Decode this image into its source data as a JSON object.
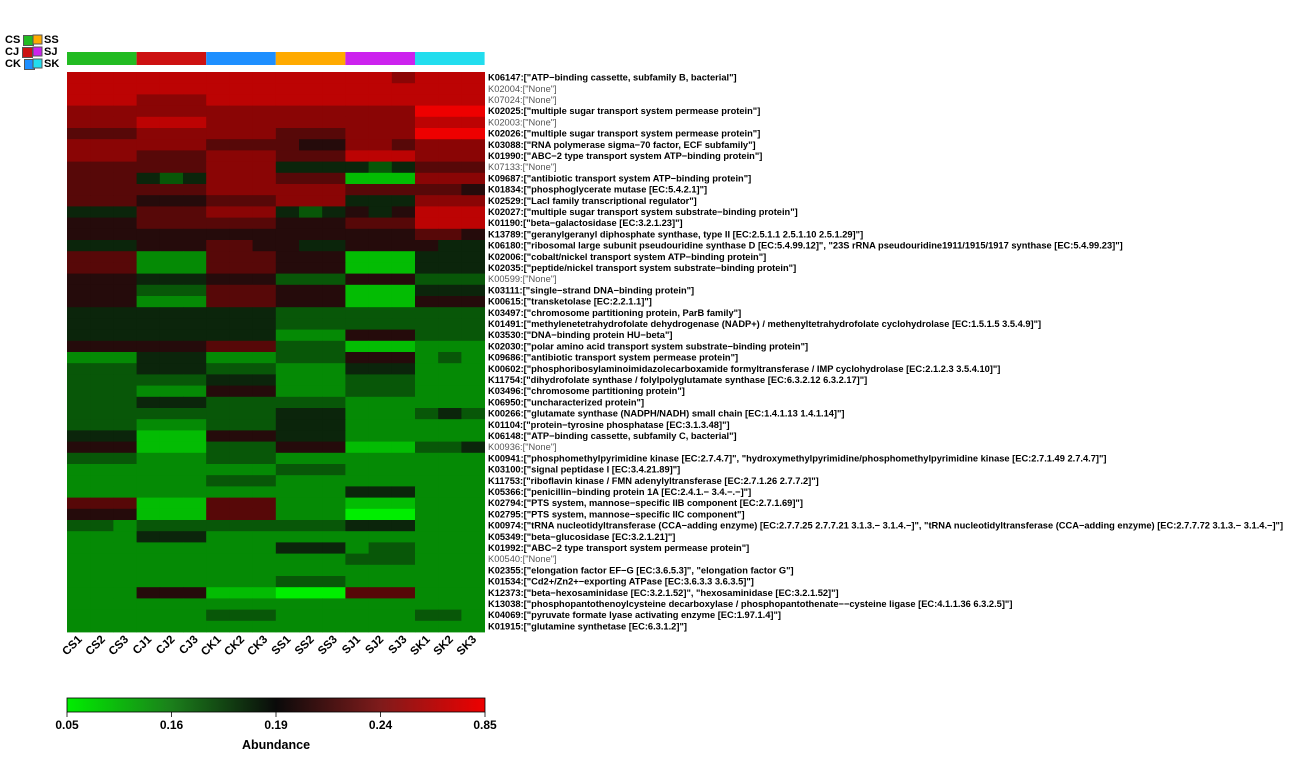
{
  "chart_data": {
    "type": "heatmap",
    "group_legend": [
      {
        "name": "CS",
        "color": "#22BB22"
      },
      {
        "name": "SS",
        "color": "#FFAA00"
      },
      {
        "name": "CJ",
        "color": "#CC1111"
      },
      {
        "name": "SJ",
        "color": "#CC22EE"
      },
      {
        "name": "CK",
        "color": "#1E8FFF"
      },
      {
        "name": "SK",
        "color": "#22DDEE"
      }
    ],
    "groups": [
      "CS",
      "CJ",
      "CK",
      "SS",
      "SJ",
      "SK"
    ],
    "columns": [
      "CS1",
      "CS2",
      "CS3",
      "CJ1",
      "CJ2",
      "CJ3",
      "CK1",
      "CK2",
      "CK3",
      "SS1",
      "SS2",
      "SS3",
      "SJ1",
      "SJ2",
      "SJ3",
      "SK1",
      "SK2",
      "SK3"
    ],
    "rows": [
      {
        "id": "K06147",
        "label": "[\"ATP−binding cassette, subfamily B, bacterial\"]"
      },
      {
        "id": "K02004",
        "label": "[\"None\"]"
      },
      {
        "id": "K07024",
        "label": "[\"None\"]"
      },
      {
        "id": "K02025",
        "label": "[\"multiple sugar transport system permease protein\"]"
      },
      {
        "id": "K02003",
        "label": "[\"None\"]"
      },
      {
        "id": "K02026",
        "label": "[\"multiple sugar transport system permease protein\"]"
      },
      {
        "id": "K03088",
        "label": "[\"RNA polymerase sigma−70 factor, ECF subfamily\"]"
      },
      {
        "id": "K01990",
        "label": "[\"ABC−2 type transport system ATP−binding protein\"]"
      },
      {
        "id": "K07133",
        "label": "[\"None\"]"
      },
      {
        "id": "K09687",
        "label": "[\"antibiotic transport system ATP−binding protein\"]"
      },
      {
        "id": "K01834",
        "label": "[\"phosphoglycerate mutase [EC:5.4.2.1]\"]"
      },
      {
        "id": "K02529",
        "label": "[\"LacI family transcriptional regulator\"]"
      },
      {
        "id": "K02027",
        "label": "[\"multiple sugar transport system substrate−binding protein\"]"
      },
      {
        "id": "K01190",
        "label": "[\"beta−galactosidase [EC:3.2.1.23]\"]"
      },
      {
        "id": "K13789",
        "label": "[\"geranylgeranyl diphosphate synthase, type II [EC:2.5.1.1 2.5.1.10 2.5.1.29]\"]"
      },
      {
        "id": "K06180",
        "label": "[\"ribosomal large subunit pseudouridine synthase D [EC:5.4.99.12]\", \"23S rRNA pseudouridine1911/1915/1917 synthase [EC:5.4.99.23]\"]"
      },
      {
        "id": "K02006",
        "label": "[\"cobalt/nickel transport system ATP−binding protein\"]"
      },
      {
        "id": "K02035",
        "label": "[\"peptide/nickel transport system substrate−binding protein\"]"
      },
      {
        "id": "K00599",
        "label": "[\"None\"]"
      },
      {
        "id": "K03111",
        "label": "[\"single−strand DNA−binding protein\"]"
      },
      {
        "id": "K00615",
        "label": "[\"transketolase [EC:2.2.1.1]\"]"
      },
      {
        "id": "K03497",
        "label": "[\"chromosome partitioning protein, ParB family\"]"
      },
      {
        "id": "K01491",
        "label": "[\"methylenetetrahydrofolate dehydrogenase (NADP+) / methenyltetrahydrofolate cyclohydrolase [EC:1.5.1.5 3.5.4.9]\"]"
      },
      {
        "id": "K03530",
        "label": "[\"DNA−binding protein HU−beta\"]"
      },
      {
        "id": "K02030",
        "label": "[\"polar amino acid transport system substrate−binding protein\"]"
      },
      {
        "id": "K09686",
        "label": "[\"antibiotic transport system permease protein\"]"
      },
      {
        "id": "K00602",
        "label": "[\"phosphoribosylaminoimidazolecarboxamide formyltransferase / IMP cyclohydrolase [EC:2.1.2.3 3.5.4.10]\"]"
      },
      {
        "id": "K11754",
        "label": "[\"dihydrofolate synthase / folylpolyglutamate synthase [EC:6.3.2.12 6.3.2.17]\"]"
      },
      {
        "id": "K03496",
        "label": "[\"chromosome partitioning protein\"]"
      },
      {
        "id": "K06950",
        "label": "[\"uncharacterized protein\"]"
      },
      {
        "id": "K00266",
        "label": "[\"glutamate synthase (NADPH/NADH) small chain [EC:1.4.1.13 1.4.1.14]\"]"
      },
      {
        "id": "K01104",
        "label": "[\"protein−tyrosine phosphatase [EC:3.1.3.48]\"]"
      },
      {
        "id": "K06148",
        "label": "[\"ATP−binding cassette, subfamily C, bacterial\"]"
      },
      {
        "id": "K00936",
        "label": "[\"None\"]"
      },
      {
        "id": "K00941",
        "label": "[\"phosphomethylpyrimidine kinase [EC:2.7.4.7]\", \"hydroxymethylpyrimidine/phosphomethylpyrimidine kinase [EC:2.7.1.49 2.7.4.7]\"]"
      },
      {
        "id": "K03100",
        "label": "[\"signal peptidase I [EC:3.4.21.89]\"]"
      },
      {
        "id": "K11753",
        "label": "[\"riboflavin kinase / FMN adenylyltransferase [EC:2.7.1.26 2.7.7.2]\"]"
      },
      {
        "id": "K05366",
        "label": "[\"penicillin−binding protein 1A [EC:2.4.1.− 3.4.−.−]\"]"
      },
      {
        "id": "K02794",
        "label": "[\"PTS system, mannose−specific IIB component [EC:2.7.1.69]\"]"
      },
      {
        "id": "K02795",
        "label": "[\"PTS system, mannose−specific IIC component\"]"
      },
      {
        "id": "K00974",
        "label": "[\"tRNA nucleotidyltransferase (CCA−adding enzyme) [EC:2.7.7.25 2.7.7.21 3.1.3.− 3.1.4.−]\", \"tRNA nucleotidyltransferase (CCA−adding enzyme) [EC:2.7.7.72 3.1.3.− 3.1.4.−]\"]"
      },
      {
        "id": "K05349",
        "label": "[\"beta−glucosidase [EC:3.2.1.21]\"]"
      },
      {
        "id": "K01992",
        "label": "[\"ABC−2 type transport system permease protein\"]"
      },
      {
        "id": "K00540",
        "label": "[\"None\"]"
      },
      {
        "id": "K02355",
        "label": "[\"elongation factor EF−G [EC:3.6.5.3]\", \"elongation factor G\"]"
      },
      {
        "id": "K01534",
        "label": "[\"Cd2+/Zn2+−exporting ATPase [EC:3.6.3.3 3.6.3.5]\"]"
      },
      {
        "id": "K12373",
        "label": "[\"beta−hexosaminidase [EC:3.2.1.52]\", \"hexosaminidase [EC:3.2.1.52]\"]"
      },
      {
        "id": "K13038",
        "label": "[\"phosphopantothenoylcysteine decarboxylase / phosphopantothenate−−cysteine ligase [EC:4.1.1.36 6.3.2.5]\"]"
      },
      {
        "id": "K04069",
        "label": "[\"pyruvate formate lyase activating enzyme [EC:1.97.1.4]\"]"
      },
      {
        "id": "K01915",
        "label": "[\"glutamine synthetase [EC:6.3.1.2]\"]"
      }
    ],
    "none_rows": [
      "K02004",
      "K07024",
      "K02003",
      "K07133",
      "K00599",
      "K00936",
      "K00540"
    ],
    "values": [
      [
        8,
        8,
        8,
        8,
        8,
        8,
        8,
        8,
        8,
        8,
        8,
        8,
        8,
        8,
        7,
        8,
        8,
        8
      ],
      [
        8,
        8,
        8,
        8,
        8,
        8,
        8,
        8,
        8,
        8,
        8,
        8,
        8,
        8,
        8,
        8,
        8,
        8
      ],
      [
        8,
        8,
        8,
        7,
        7,
        7,
        8,
        8,
        8,
        8,
        8,
        8,
        8,
        8,
        8,
        8,
        8,
        8
      ],
      [
        7,
        7,
        7,
        7,
        7,
        7,
        7,
        7,
        7,
        7,
        7,
        7,
        7,
        7,
        7,
        9,
        9,
        9
      ],
      [
        7,
        7,
        7,
        8,
        8,
        8,
        7,
        7,
        7,
        7,
        7,
        7,
        7,
        7,
        7,
        8,
        8,
        8
      ],
      [
        6,
        6,
        6,
        7,
        7,
        7,
        7,
        7,
        7,
        6,
        6,
        6,
        7,
        7,
        7,
        9,
        9,
        9
      ],
      [
        7,
        7,
        7,
        7,
        7,
        7,
        6,
        6,
        6,
        6,
        5,
        5,
        7,
        7,
        6,
        7,
        7,
        7
      ],
      [
        7,
        7,
        7,
        6,
        6,
        6,
        7,
        7,
        7,
        6,
        6,
        6,
        8,
        8,
        8,
        7,
        7,
        7
      ],
      [
        6,
        6,
        6,
        6,
        6,
        6,
        7,
        7,
        7,
        4,
        4,
        4,
        4,
        3,
        4,
        6,
        6,
        6
      ],
      [
        6,
        6,
        6,
        4,
        3,
        4,
        7,
        7,
        7,
        6,
        6,
        6,
        1,
        1,
        1,
        7,
        7,
        7
      ],
      [
        6,
        6,
        6,
        6,
        6,
        6,
        7,
        7,
        7,
        7,
        7,
        7,
        6,
        6,
        6,
        6,
        6,
        5
      ],
      [
        6,
        6,
        6,
        5,
        5,
        5,
        6,
        6,
        6,
        7,
        7,
        7,
        4,
        4,
        4,
        7,
        7,
        7
      ],
      [
        4,
        4,
        4,
        6,
        6,
        6,
        7,
        7,
        7,
        4,
        3,
        4,
        5,
        4,
        5,
        8,
        8,
        8
      ],
      [
        5,
        5,
        5,
        6,
        6,
        6,
        6,
        6,
        6,
        5,
        5,
        5,
        6,
        6,
        6,
        8,
        8,
        8
      ],
      [
        5,
        5,
        5,
        5,
        5,
        5,
        5,
        5,
        5,
        5,
        5,
        5,
        5,
        5,
        5,
        6,
        6,
        5
      ],
      [
        4,
        4,
        4,
        5,
        5,
        5,
        6,
        6,
        5,
        5,
        4,
        4,
        5,
        5,
        5,
        5,
        4,
        4
      ],
      [
        6,
        6,
        6,
        2,
        2,
        2,
        6,
        6,
        6,
        5,
        5,
        5,
        1,
        1,
        1,
        4,
        4,
        4
      ],
      [
        6,
        6,
        6,
        2,
        2,
        2,
        6,
        6,
        6,
        5,
        5,
        5,
        1,
        1,
        1,
        4,
        4,
        4
      ],
      [
        5,
        5,
        5,
        4,
        4,
        4,
        5,
        5,
        5,
        3,
        3,
        3,
        5,
        5,
        5,
        3,
        3,
        3
      ],
      [
        5,
        5,
        5,
        3,
        3,
        3,
        6,
        6,
        6,
        5,
        5,
        5,
        1,
        1,
        1,
        4,
        4,
        4
      ],
      [
        5,
        5,
        5,
        2,
        2,
        2,
        6,
        6,
        6,
        5,
        5,
        5,
        1,
        1,
        1,
        5,
        5,
        5
      ],
      [
        4,
        4,
        4,
        4,
        4,
        4,
        4,
        4,
        4,
        3,
        3,
        3,
        3,
        3,
        3,
        3,
        3,
        3
      ],
      [
        4,
        4,
        4,
        4,
        4,
        4,
        4,
        4,
        4,
        3,
        3,
        3,
        3,
        3,
        3,
        3,
        3,
        3
      ],
      [
        4,
        4,
        4,
        4,
        4,
        4,
        4,
        4,
        4,
        2,
        2,
        2,
        5,
        5,
        5,
        3,
        3,
        3
      ],
      [
        5,
        5,
        5,
        5,
        5,
        5,
        6,
        6,
        6,
        3,
        3,
        3,
        1,
        1,
        1,
        2,
        2,
        2
      ],
      [
        2,
        2,
        2,
        4,
        4,
        4,
        2,
        2,
        2,
        3,
        3,
        3,
        5,
        5,
        5,
        2,
        3,
        2
      ],
      [
        3,
        3,
        3,
        4,
        4,
        4,
        3,
        3,
        3,
        2,
        2,
        2,
        4,
        4,
        4,
        2,
        2,
        2
      ],
      [
        3,
        3,
        3,
        3,
        3,
        3,
        4,
        4,
        4,
        2,
        2,
        2,
        3,
        3,
        3,
        2,
        2,
        2
      ],
      [
        3,
        3,
        3,
        2,
        2,
        2,
        5,
        5,
        5,
        2,
        2,
        2,
        3,
        3,
        3,
        2,
        2,
        2
      ],
      [
        3,
        3,
        3,
        4,
        4,
        4,
        3,
        3,
        3,
        3,
        3,
        3,
        2,
        2,
        2,
        2,
        2,
        2
      ],
      [
        3,
        3,
        3,
        3,
        3,
        3,
        3,
        3,
        3,
        4,
        4,
        4,
        2,
        2,
        2,
        3,
        4,
        3
      ],
      [
        3,
        3,
        3,
        2,
        2,
        2,
        3,
        3,
        3,
        4,
        4,
        4,
        2,
        2,
        2,
        2,
        2,
        2
      ],
      [
        4,
        4,
        4,
        1,
        1,
        1,
        5,
        5,
        5,
        4,
        4,
        4,
        2,
        2,
        2,
        2,
        2,
        2
      ],
      [
        5,
        5,
        5,
        1,
        1,
        1,
        3,
        3,
        3,
        5,
        5,
        5,
        1,
        1,
        1,
        3,
        3,
        4
      ],
      [
        3,
        3,
        3,
        2,
        2,
        2,
        3,
        3,
        3,
        2,
        2,
        2,
        2,
        2,
        2,
        2,
        2,
        2
      ],
      [
        2,
        2,
        2,
        2,
        2,
        2,
        2,
        2,
        2,
        3,
        3,
        3,
        2,
        2,
        2,
        2,
        2,
        2
      ],
      [
        2,
        2,
        2,
        2,
        2,
        2,
        3,
        3,
        3,
        2,
        2,
        2,
        2,
        2,
        2,
        2,
        2,
        2
      ],
      [
        2,
        2,
        2,
        2,
        2,
        2,
        2,
        2,
        2,
        2,
        2,
        2,
        4,
        4,
        4,
        2,
        2,
        2
      ],
      [
        6,
        6,
        6,
        1,
        1,
        1,
        6,
        6,
        6,
        2,
        2,
        2,
        1,
        1,
        1,
        2,
        2,
        2
      ],
      [
        5,
        5,
        5,
        1,
        1,
        1,
        6,
        6,
        6,
        2,
        2,
        2,
        0,
        0,
        0,
        2,
        2,
        2
      ],
      [
        3,
        3,
        2,
        3,
        3,
        3,
        3,
        3,
        3,
        3,
        3,
        3,
        4,
        4,
        4,
        2,
        2,
        2
      ],
      [
        2,
        2,
        2,
        4,
        4,
        4,
        2,
        2,
        2,
        2,
        2,
        2,
        2,
        2,
        2,
        2,
        2,
        2
      ],
      [
        2,
        2,
        2,
        2,
        2,
        2,
        2,
        2,
        2,
        4,
        4,
        4,
        2,
        3,
        3,
        2,
        2,
        2
      ],
      [
        2,
        2,
        2,
        2,
        2,
        2,
        2,
        2,
        2,
        2,
        2,
        2,
        3,
        3,
        3,
        2,
        2,
        2
      ],
      [
        2,
        2,
        2,
        2,
        2,
        2,
        2,
        2,
        2,
        2,
        2,
        2,
        2,
        2,
        2,
        2,
        2,
        2
      ],
      [
        2,
        2,
        2,
        2,
        2,
        2,
        2,
        2,
        2,
        3,
        3,
        3,
        2,
        2,
        2,
        2,
        2,
        2
      ],
      [
        2,
        2,
        2,
        5,
        5,
        5,
        1,
        1,
        1,
        0,
        0,
        0,
        6,
        6,
        6,
        2,
        2,
        2
      ],
      [
        2,
        2,
        2,
        2,
        2,
        2,
        2,
        2,
        2,
        2,
        2,
        2,
        2,
        2,
        2,
        2,
        2,
        2
      ],
      [
        2,
        2,
        2,
        2,
        2,
        2,
        3,
        3,
        3,
        2,
        2,
        2,
        2,
        2,
        2,
        3,
        3,
        2
      ],
      [
        2,
        2,
        2,
        2,
        2,
        2,
        2,
        2,
        2,
        2,
        2,
        2,
        2,
        2,
        2,
        2,
        2,
        2
      ]
    ],
    "value_scale": "0 = lowest (green) … 9 = highest (red)",
    "colorbar": {
      "title": "Abundance",
      "ticks": [
        "0.05",
        "0.16",
        "0.19",
        "0.24",
        "0.85"
      ],
      "gradient_stops": [
        "#00EE00",
        "#1B7F1B",
        "#0A0A0A",
        "#7F1B1B",
        "#EE0000"
      ]
    }
  }
}
